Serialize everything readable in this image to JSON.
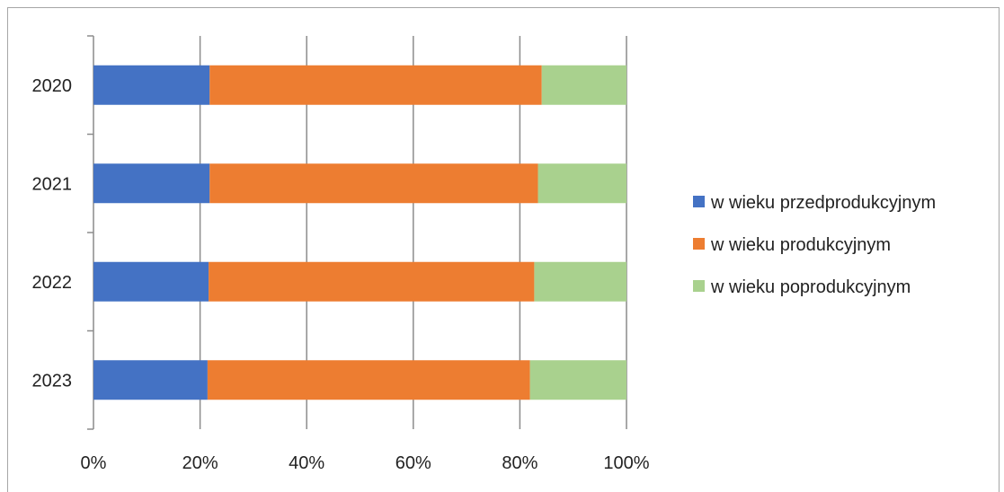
{
  "chart_data": {
    "type": "bar",
    "orientation": "horizontal",
    "stacking": "percent",
    "categories": [
      "2020",
      "2021",
      "2022",
      "2023"
    ],
    "series": [
      {
        "name": "w wieku przedprodukcyjnym",
        "color": "#4472c4",
        "values": [
          21.8,
          21.8,
          21.6,
          21.4
        ]
      },
      {
        "name": "w wieku produkcyjnym",
        "color": "#ed7d31",
        "values": [
          62.3,
          61.6,
          61.1,
          60.5
        ]
      },
      {
        "name": "w wieku poprodukcyjnym",
        "color": "#a9d18e",
        "values": [
          15.9,
          16.6,
          17.3,
          18.1
        ]
      }
    ],
    "x_ticks": [
      "0%",
      "20%",
      "40%",
      "60%",
      "80%",
      "100%"
    ],
    "xlim": [
      0,
      100
    ],
    "grid": true,
    "legend_position": "right",
    "title": "",
    "xlabel": "",
    "ylabel": ""
  }
}
